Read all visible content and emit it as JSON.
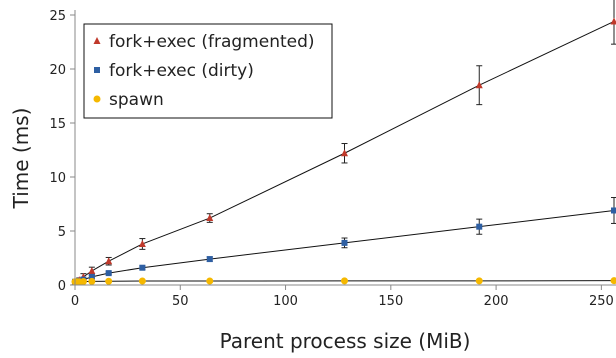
{
  "chart_data": {
    "type": "line",
    "xlabel": "Parent process size (MiB)",
    "ylabel": "Time (ms)",
    "xlim": [
      0,
      256
    ],
    "ylim": [
      0,
      25
    ],
    "x_ticks": [
      0,
      50,
      100,
      150,
      200,
      250
    ],
    "y_ticks": [
      0,
      5,
      10,
      15,
      20,
      25
    ],
    "grid": false,
    "legend_position": "top-left",
    "series": [
      {
        "name": "fork+exec (fragmented)",
        "color": "#c0392b",
        "marker": "triangle",
        "x": [
          0,
          1,
          2,
          4,
          8,
          16,
          32,
          64,
          128,
          192,
          256
        ],
        "y": [
          0.3,
          0.35,
          0.45,
          0.75,
          1.3,
          2.2,
          3.8,
          6.2,
          12.2,
          18.5,
          24.4
        ],
        "err": [
          0.1,
          0.15,
          0.2,
          0.3,
          0.35,
          0.35,
          0.5,
          0.4,
          0.9,
          1.8,
          2.1
        ]
      },
      {
        "name": "fork+exec (dirty)",
        "color": "#2e5fa3",
        "marker": "square",
        "x": [
          0,
          1,
          2,
          4,
          8,
          16,
          32,
          64,
          128,
          192,
          256
        ],
        "y": [
          0.3,
          0.32,
          0.38,
          0.5,
          0.75,
          1.1,
          1.6,
          2.4,
          3.9,
          5.4,
          6.9
        ],
        "err": [
          0.05,
          0.05,
          0.07,
          0.08,
          0.1,
          0.1,
          0.15,
          0.2,
          0.45,
          0.7,
          1.2
        ]
      },
      {
        "name": "spawn",
        "color": "#f5b800",
        "marker": "circle",
        "x": [
          0,
          1,
          2,
          4,
          8,
          16,
          32,
          64,
          128,
          192,
          256
        ],
        "y": [
          0.3,
          0.3,
          0.3,
          0.32,
          0.33,
          0.35,
          0.37,
          0.37,
          0.38,
          0.38,
          0.4
        ],
        "err": [
          0.05,
          0.05,
          0.05,
          0.05,
          0.05,
          0.05,
          0.05,
          0.05,
          0.05,
          0.05,
          0.1
        ]
      }
    ]
  }
}
